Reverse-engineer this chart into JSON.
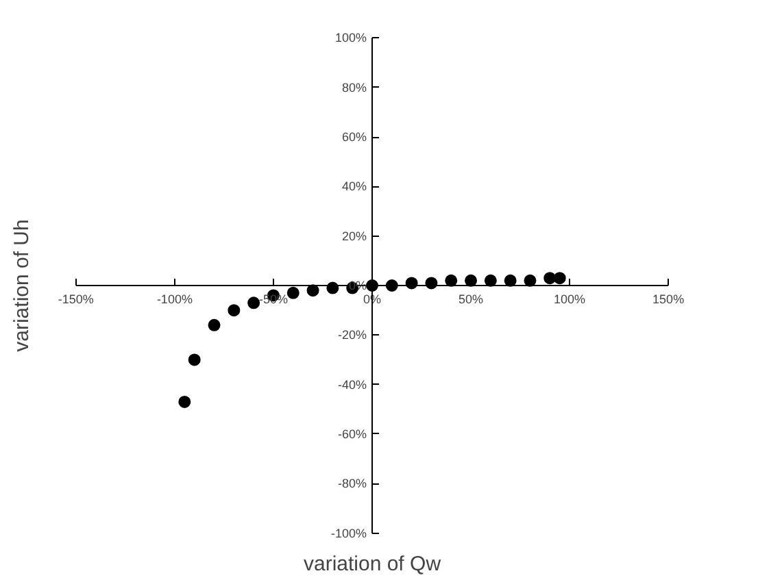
{
  "chart_data": {
    "type": "scatter",
    "xlabel": "variation of Qw",
    "ylabel": "variation of Uh",
    "x": [
      -95,
      -90,
      -80,
      -70,
      -60,
      -50,
      -40,
      -30,
      -20,
      -10,
      0,
      10,
      20,
      30,
      40,
      50,
      60,
      70,
      80,
      90,
      95
    ],
    "series": [
      {
        "color": "#000000",
        "values": [
          -47,
          -30,
          -16,
          -10,
          -7,
          -4,
          -3,
          -2,
          -1,
          -1,
          0,
          0,
          1,
          1,
          2,
          2,
          2,
          2,
          2,
          3,
          3
        ]
      }
    ],
    "xlim": [
      -150,
      150
    ],
    "ylim": [
      -100,
      100
    ],
    "xticks": [
      {
        "value": -150,
        "label": "-150%"
      },
      {
        "value": -100,
        "label": "-100%"
      },
      {
        "value": -50,
        "label": "-50%"
      },
      {
        "value": 0,
        "label": "0%"
      },
      {
        "value": 50,
        "label": "50%"
      },
      {
        "value": 100,
        "label": "100%"
      },
      {
        "value": 150,
        "label": "150%"
      }
    ],
    "yticks": [
      {
        "value": -100,
        "label": "-100%"
      },
      {
        "value": -80,
        "label": "-80%"
      },
      {
        "value": -60,
        "label": "-60%"
      },
      {
        "value": -40,
        "label": "-40%"
      },
      {
        "value": -20,
        "label": "-20%"
      },
      {
        "value": 0,
        "label": "0%"
      },
      {
        "value": 20,
        "label": "20%"
      },
      {
        "value": 40,
        "label": "40%"
      },
      {
        "value": 60,
        "label": "60%"
      },
      {
        "value": 80,
        "label": "80%"
      },
      {
        "value": 100,
        "label": "100%"
      }
    ],
    "grid": false
  }
}
